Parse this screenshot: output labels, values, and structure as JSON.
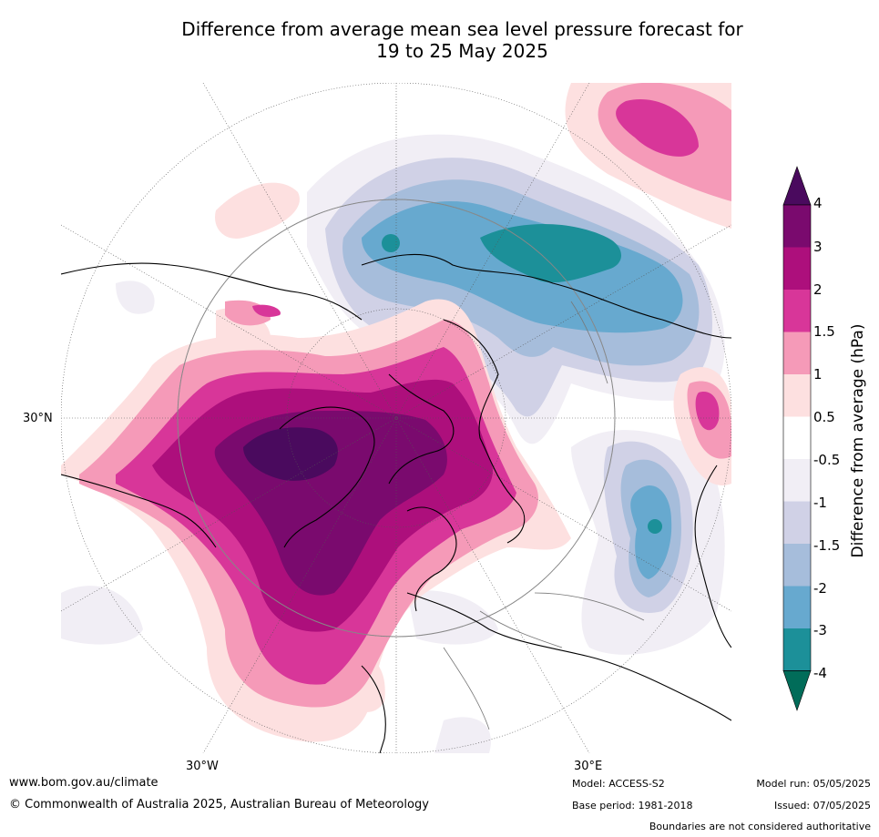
{
  "title_line1": "Difference from average mean sea level pressure forecast for",
  "title_line2": "19 to 25 May 2025",
  "lat_label": "30°N",
  "lon_label_west": "30°W",
  "lon_label_east": "30°E",
  "colorbar": {
    "title": "Difference from average (hPa)",
    "ticks": [
      "4",
      "3",
      "2",
      "1.5",
      "1",
      "0.5",
      "-0.5",
      "-1",
      "-1.5",
      "-2",
      "-3",
      "-4"
    ],
    "colors": {
      "gt4": "#4a0a5e",
      "3_4": "#7a0a6e",
      "2_3": "#ad0f7c",
      "1.5_2": "#d83699",
      "1_1.5": "#f59ab8",
      "0.5_1": "#fde0e0",
      "neutral": "#ffffff",
      "m0.5_m1": "#f1eef5",
      "m1_m1.5": "#d0d1e6",
      "m1.5_m2": "#a6bddb",
      "m2_m3": "#67a9cf",
      "m3_m4": "#1c9099",
      "lt_m4": "#016c59"
    }
  },
  "footer": {
    "url": "www.bom.gov.au/climate",
    "copyright": "© Commonwealth of Australia 2025, Australian Bureau of Meteorology",
    "model": "Model: ACCESS-S2",
    "base_period": "Base period: 1981-2018",
    "model_run": "Model run: 05/05/2025",
    "issued": "Issued: 07/05/2025",
    "disclaimer": "Boundaries are not considered authoritative"
  }
}
